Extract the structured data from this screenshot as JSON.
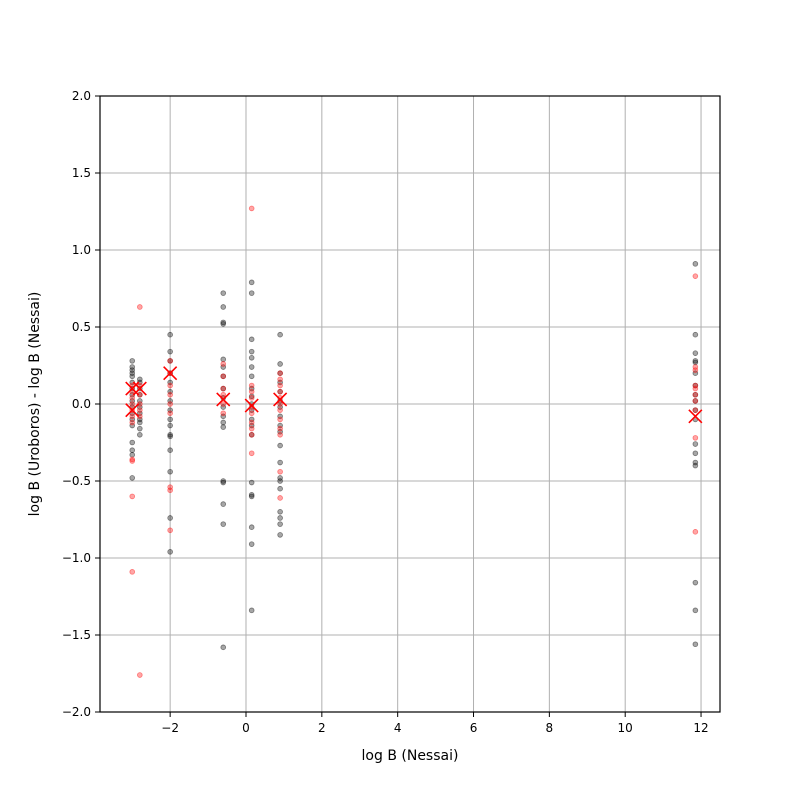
{
  "chart_data": {
    "type": "scatter",
    "title": "",
    "xlabel": "log B (Nessai)",
    "ylabel": "log B (Uroboros) - log B (Nessai)",
    "xlim": [
      -3.85,
      12.5
    ],
    "ylim": [
      -2.0,
      2.0
    ],
    "xticks": [
      -2,
      0,
      2,
      4,
      6,
      8,
      10,
      12
    ],
    "xtick_labels": [
      "−2",
      "0",
      "2",
      "4",
      "6",
      "8",
      "10",
      "12"
    ],
    "yticks": [
      -2.0,
      -1.5,
      -1.0,
      -0.5,
      0.0,
      0.5,
      1.0,
      1.5,
      2.0
    ],
    "ytick_labels": [
      "−2.0",
      "−1.5",
      "−1.0",
      "−0.5",
      "0.0",
      "0.5",
      "1.0",
      "1.5",
      "2.0"
    ],
    "grid": true,
    "colors": {
      "series_a": "#000000",
      "series_b": "#ff0000",
      "means": "#ff0000",
      "grid": "#b0b0b0"
    },
    "series": [
      {
        "marker": "dot",
        "color": "#000000",
        "points": [
          [
            -3.0,
            0.28
          ],
          [
            -3.0,
            0.24
          ],
          [
            -3.0,
            0.22
          ],
          [
            -3.0,
            0.2
          ],
          [
            -3.0,
            0.18
          ],
          [
            -3.0,
            0.14
          ],
          [
            -3.0,
            0.1
          ],
          [
            -3.0,
            0.06
          ],
          [
            -3.0,
            0.02
          ],
          [
            -3.0,
            -0.02
          ],
          [
            -3.0,
            -0.06
          ],
          [
            -3.0,
            -0.1
          ],
          [
            -3.0,
            -0.14
          ],
          [
            -3.0,
            -0.25
          ],
          [
            -3.0,
            -0.3
          ],
          [
            -3.0,
            -0.33
          ],
          [
            -3.0,
            -0.48
          ],
          [
            -2.8,
            0.16
          ],
          [
            -2.8,
            0.14
          ],
          [
            -2.8,
            0.1
          ],
          [
            -2.8,
            0.06
          ],
          [
            -2.8,
            0.02
          ],
          [
            -2.8,
            -0.02
          ],
          [
            -2.8,
            -0.06
          ],
          [
            -2.8,
            -0.1
          ],
          [
            -2.8,
            -0.12
          ],
          [
            -2.8,
            -0.16
          ],
          [
            -2.8,
            -0.2
          ],
          [
            -2.0,
            0.45
          ],
          [
            -2.0,
            0.34
          ],
          [
            -2.0,
            0.28
          ],
          [
            -2.0,
            0.2
          ],
          [
            -2.0,
            0.14
          ],
          [
            -2.0,
            0.08
          ],
          [
            -2.0,
            0.02
          ],
          [
            -2.0,
            -0.04
          ],
          [
            -2.0,
            -0.1
          ],
          [
            -2.0,
            -0.14
          ],
          [
            -2.0,
            -0.2
          ],
          [
            -2.0,
            -0.21
          ],
          [
            -2.0,
            -0.3
          ],
          [
            -2.0,
            -0.44
          ],
          [
            -2.0,
            -0.74
          ],
          [
            -2.0,
            -0.96
          ],
          [
            -0.6,
            0.72
          ],
          [
            -0.6,
            0.63
          ],
          [
            -0.6,
            0.53
          ],
          [
            -0.6,
            0.52
          ],
          [
            -0.6,
            0.29
          ],
          [
            -0.6,
            0.24
          ],
          [
            -0.6,
            0.18
          ],
          [
            -0.6,
            0.1
          ],
          [
            -0.6,
            0.04
          ],
          [
            -0.6,
            -0.02
          ],
          [
            -0.6,
            -0.08
          ],
          [
            -0.6,
            -0.12
          ],
          [
            -0.6,
            -0.15
          ],
          [
            -0.6,
            -0.5
          ],
          [
            -0.6,
            -0.51
          ],
          [
            -0.6,
            -0.65
          ],
          [
            -0.6,
            -0.78
          ],
          [
            -0.6,
            -1.58
          ],
          [
            0.15,
            0.79
          ],
          [
            0.15,
            0.72
          ],
          [
            0.15,
            0.42
          ],
          [
            0.15,
            0.34
          ],
          [
            0.15,
            0.3
          ],
          [
            0.15,
            0.24
          ],
          [
            0.15,
            0.18
          ],
          [
            0.15,
            0.1
          ],
          [
            0.15,
            0.05
          ],
          [
            0.15,
            0.0
          ],
          [
            0.15,
            -0.04
          ],
          [
            0.15,
            -0.1
          ],
          [
            0.15,
            -0.14
          ],
          [
            0.15,
            -0.2
          ],
          [
            0.15,
            -0.51
          ],
          [
            0.15,
            -0.59
          ],
          [
            0.15,
            -0.6
          ],
          [
            0.15,
            -0.8
          ],
          [
            0.15,
            -0.91
          ],
          [
            0.15,
            -1.34
          ],
          [
            0.9,
            0.45
          ],
          [
            0.9,
            0.26
          ],
          [
            0.9,
            0.2
          ],
          [
            0.9,
            0.14
          ],
          [
            0.9,
            0.08
          ],
          [
            0.9,
            0.02
          ],
          [
            0.9,
            -0.02
          ],
          [
            0.9,
            -0.08
          ],
          [
            0.9,
            -0.14
          ],
          [
            0.9,
            -0.18
          ],
          [
            0.9,
            -0.27
          ],
          [
            0.9,
            -0.38
          ],
          [
            0.9,
            -0.48
          ],
          [
            0.9,
            -0.5
          ],
          [
            0.9,
            -0.55
          ],
          [
            0.9,
            -0.7
          ],
          [
            0.9,
            -0.74
          ],
          [
            0.9,
            -0.78
          ],
          [
            0.9,
            -0.85
          ],
          [
            11.85,
            0.91
          ],
          [
            11.85,
            0.45
          ],
          [
            11.85,
            0.33
          ],
          [
            11.85,
            0.28
          ],
          [
            11.85,
            0.27
          ],
          [
            11.85,
            0.2
          ],
          [
            11.85,
            0.12
          ],
          [
            11.85,
            0.06
          ],
          [
            11.85,
            0.02
          ],
          [
            11.85,
            -0.04
          ],
          [
            11.85,
            -0.1
          ],
          [
            11.85,
            -0.26
          ],
          [
            11.85,
            -0.32
          ],
          [
            11.85,
            -0.38
          ],
          [
            11.85,
            -0.4
          ],
          [
            11.85,
            -1.16
          ],
          [
            11.85,
            -1.34
          ],
          [
            11.85,
            -1.56
          ]
        ]
      },
      {
        "marker": "dot",
        "color": "#ff0000",
        "points": [
          [
            -3.0,
            0.12
          ],
          [
            -3.0,
            0.08
          ],
          [
            -3.0,
            0.04
          ],
          [
            -3.0,
            0.0
          ],
          [
            -3.0,
            -0.04
          ],
          [
            -3.0,
            -0.08
          ],
          [
            -3.0,
            -0.12
          ],
          [
            -3.0,
            -0.36
          ],
          [
            -3.0,
            -0.37
          ],
          [
            -3.0,
            -0.6
          ],
          [
            -3.0,
            -1.09
          ],
          [
            -2.8,
            0.63
          ],
          [
            -2.8,
            0.12
          ],
          [
            -2.8,
            0.06
          ],
          [
            -2.8,
            0.0
          ],
          [
            -2.8,
            -0.04
          ],
          [
            -2.8,
            -0.08
          ],
          [
            -2.8,
            -1.76
          ],
          [
            -2.0,
            0.28
          ],
          [
            -2.0,
            0.2
          ],
          [
            -2.0,
            0.12
          ],
          [
            -2.0,
            0.06
          ],
          [
            -2.0,
            0.0
          ],
          [
            -2.0,
            -0.06
          ],
          [
            -2.0,
            -0.54
          ],
          [
            -2.0,
            -0.56
          ],
          [
            -2.0,
            -0.82
          ],
          [
            -0.6,
            0.26
          ],
          [
            -0.6,
            0.18
          ],
          [
            -0.6,
            0.1
          ],
          [
            -0.6,
            0.06
          ],
          [
            -0.6,
            0.0
          ],
          [
            -0.6,
            -0.06
          ],
          [
            0.15,
            1.27
          ],
          [
            0.15,
            0.12
          ],
          [
            0.15,
            0.08
          ],
          [
            0.15,
            0.04
          ],
          [
            0.15,
            -0.02
          ],
          [
            0.15,
            -0.06
          ],
          [
            0.15,
            -0.12
          ],
          [
            0.15,
            -0.16
          ],
          [
            0.15,
            -0.2
          ],
          [
            0.15,
            -0.32
          ],
          [
            0.9,
            0.2
          ],
          [
            0.9,
            0.16
          ],
          [
            0.9,
            0.12
          ],
          [
            0.9,
            0.08
          ],
          [
            0.9,
            0.04
          ],
          [
            0.9,
            0.0
          ],
          [
            0.9,
            -0.04
          ],
          [
            0.9,
            -0.1
          ],
          [
            0.9,
            -0.16
          ],
          [
            0.9,
            -0.2
          ],
          [
            0.9,
            -0.44
          ],
          [
            0.9,
            -0.61
          ],
          [
            11.85,
            0.83
          ],
          [
            11.85,
            0.24
          ],
          [
            11.85,
            0.22
          ],
          [
            11.85,
            0.12
          ],
          [
            11.85,
            0.1
          ],
          [
            11.85,
            0.06
          ],
          [
            11.85,
            0.02
          ],
          [
            11.85,
            -0.04
          ],
          [
            11.85,
            -0.22
          ],
          [
            11.85,
            -0.83
          ]
        ]
      },
      {
        "marker": "x",
        "color": "#ff0000",
        "points": [
          [
            -3.0,
            0.1
          ],
          [
            -3.0,
            -0.04
          ],
          [
            -2.8,
            0.1
          ],
          [
            -2.0,
            0.2
          ],
          [
            -0.6,
            0.03
          ],
          [
            0.15,
            -0.01
          ],
          [
            0.9,
            0.03
          ],
          [
            11.85,
            -0.08
          ]
        ]
      }
    ]
  }
}
